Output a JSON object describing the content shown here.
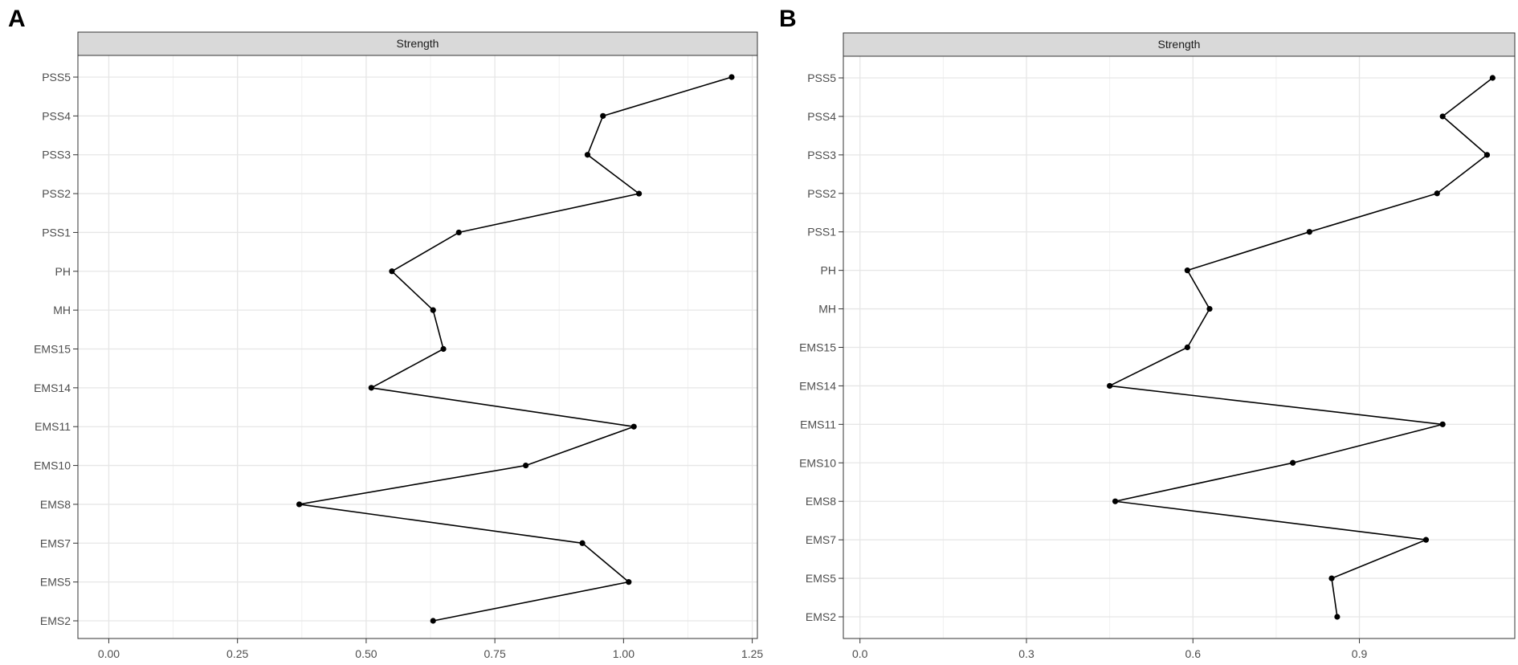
{
  "chart_data": [
    {
      "panel_label": "A",
      "type": "line",
      "facet_label": "Strength",
      "x_ticks": [
        "0.00",
        "0.25",
        "0.50",
        "0.75",
        "1.00",
        "1.25"
      ],
      "x_tick_values": [
        0,
        0.25,
        0.5,
        0.75,
        1.0,
        1.25
      ],
      "xlim": [
        -0.06,
        1.26
      ],
      "grid": true,
      "categories": [
        "PSS5",
        "PSS4",
        "PSS3",
        "PSS2",
        "PSS1",
        "PH",
        "MH",
        "EMS15",
        "EMS14",
        "EMS11",
        "EMS10",
        "EMS8",
        "EMS7",
        "EMS5",
        "EMS2"
      ],
      "values": [
        1.21,
        0.96,
        0.93,
        1.03,
        0.68,
        0.55,
        0.63,
        0.65,
        0.51,
        1.02,
        0.81,
        0.37,
        0.92,
        1.01,
        0.63
      ]
    },
    {
      "panel_label": "B",
      "type": "line",
      "facet_label": "Strength",
      "x_ticks": [
        "0.0",
        "0.3",
        "0.6",
        "0.9"
      ],
      "x_tick_values": [
        0,
        0.3,
        0.6,
        0.9
      ],
      "xlim": [
        -0.03,
        1.18
      ],
      "grid": true,
      "categories": [
        "PSS5",
        "PSS4",
        "PSS3",
        "PSS2",
        "PSS1",
        "PH",
        "MH",
        "EMS15",
        "EMS14",
        "EMS11",
        "EMS10",
        "EMS8",
        "EMS7",
        "EMS5",
        "EMS2"
      ],
      "values": [
        1.14,
        1.05,
        1.13,
        1.04,
        0.81,
        0.59,
        0.63,
        0.59,
        0.45,
        1.05,
        0.78,
        0.46,
        1.02,
        0.85,
        0.86
      ]
    }
  ]
}
